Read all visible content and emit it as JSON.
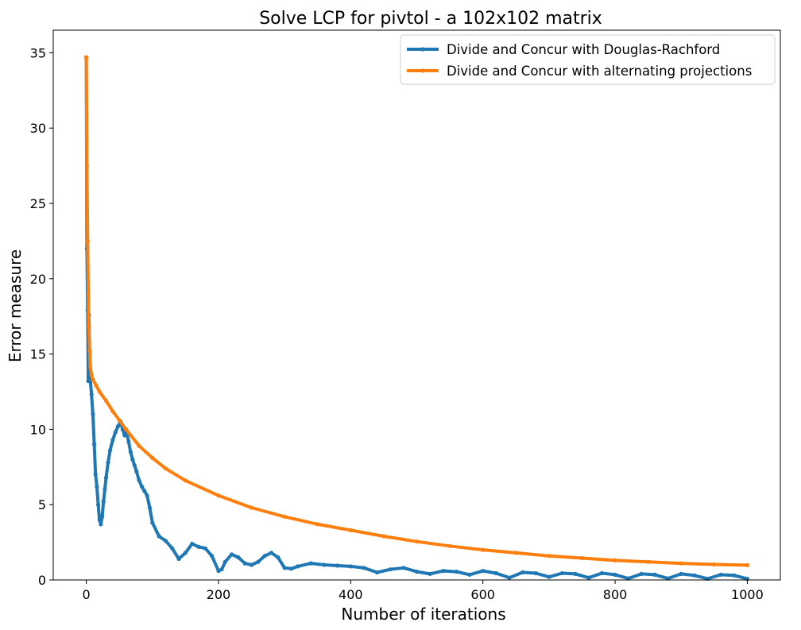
{
  "chart_data": {
    "type": "line",
    "title": "Solve LCP for pivtol - a 102x102 matrix",
    "xlabel": "Number of iterations",
    "ylabel": "Error measure",
    "xlim": [
      -50,
      1050
    ],
    "ylim": [
      0,
      36.5
    ],
    "xticks": [
      0,
      200,
      400,
      600,
      800,
      1000
    ],
    "yticks": [
      0,
      5,
      10,
      15,
      20,
      25,
      30,
      35
    ],
    "grid": false,
    "legend_position": "top-right",
    "series": [
      {
        "name": "Divide and Concur with Douglas-Rachford",
        "color": "#1f77b4",
        "x": [
          0,
          1,
          2,
          3,
          4,
          5,
          6,
          8,
          10,
          12,
          14,
          16,
          18,
          20,
          22,
          24,
          26,
          28,
          30,
          33,
          36,
          40,
          44,
          48,
          52,
          55,
          58,
          61,
          64,
          67,
          70,
          73,
          76,
          80,
          84,
          88,
          92,
          96,
          100,
          110,
          120,
          130,
          140,
          150,
          160,
          170,
          180,
          190,
          200,
          205,
          210,
          220,
          230,
          240,
          250,
          260,
          270,
          280,
          290,
          300,
          310,
          320,
          340,
          360,
          380,
          400,
          420,
          440,
          460,
          480,
          500,
          520,
          540,
          560,
          580,
          600,
          620,
          640,
          660,
          680,
          700,
          720,
          740,
          760,
          780,
          800,
          820,
          840,
          860,
          880,
          900,
          920,
          940,
          960,
          980,
          1000
        ],
        "y": [
          34.7,
          22.0,
          17.9,
          13.2,
          17.6,
          15.1,
          13.3,
          12.3,
          11.0,
          9.0,
          7.0,
          6.2,
          5.0,
          4.0,
          3.7,
          4.2,
          5.2,
          6.0,
          6.8,
          7.8,
          8.6,
          9.3,
          9.8,
          10.2,
          10.5,
          10.0,
          9.6,
          9.8,
          9.2,
          8.5,
          8.0,
          7.6,
          7.2,
          6.6,
          6.2,
          5.9,
          5.6,
          4.8,
          3.8,
          2.9,
          2.6,
          2.1,
          1.4,
          1.8,
          2.4,
          2.2,
          2.1,
          1.6,
          0.6,
          0.7,
          1.2,
          1.7,
          1.5,
          1.1,
          1.0,
          1.2,
          1.6,
          1.8,
          1.5,
          0.8,
          0.75,
          0.9,
          1.1,
          1.0,
          0.95,
          0.9,
          0.8,
          0.5,
          0.7,
          0.8,
          0.55,
          0.4,
          0.6,
          0.55,
          0.35,
          0.6,
          0.45,
          0.15,
          0.5,
          0.45,
          0.2,
          0.45,
          0.4,
          0.15,
          0.45,
          0.35,
          0.1,
          0.4,
          0.35,
          0.1,
          0.4,
          0.3,
          0.08,
          0.35,
          0.3,
          0.08
        ]
      },
      {
        "name": "Divide and Concur with alternating projections",
        "color": "#ff7f0e",
        "x": [
          0,
          1,
          2,
          3,
          4,
          5,
          6,
          8,
          10,
          15,
          20,
          30,
          40,
          50,
          60,
          80,
          100,
          120,
          150,
          200,
          250,
          300,
          350,
          400,
          450,
          500,
          550,
          600,
          650,
          700,
          750,
          800,
          850,
          900,
          950,
          1000
        ],
        "y": [
          34.7,
          27.5,
          22.5,
          19.0,
          16.8,
          15.2,
          14.2,
          13.6,
          13.3,
          12.9,
          12.5,
          11.9,
          11.2,
          10.6,
          10.0,
          8.9,
          8.1,
          7.4,
          6.6,
          5.6,
          4.8,
          4.2,
          3.7,
          3.3,
          2.9,
          2.55,
          2.25,
          2.0,
          1.8,
          1.6,
          1.45,
          1.3,
          1.2,
          1.1,
          1.03,
          0.98
        ]
      }
    ]
  }
}
